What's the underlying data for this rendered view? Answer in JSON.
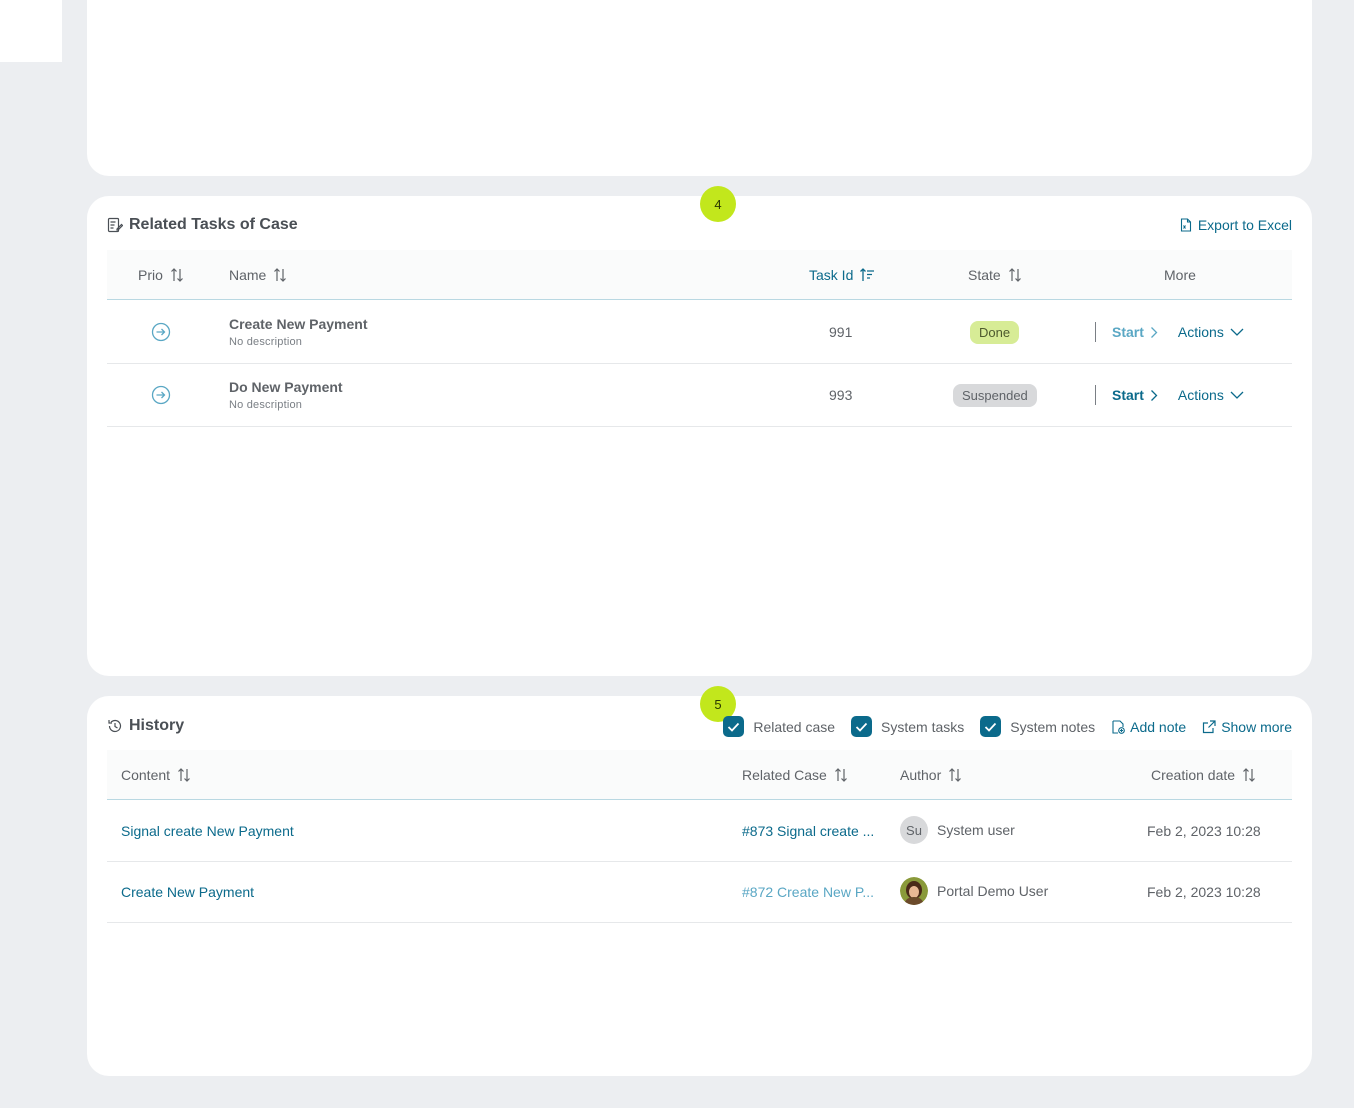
{
  "tasks_card": {
    "step": "4",
    "title": "Related Tasks of Case",
    "export_label": "Export to Excel",
    "columns": {
      "prio": "Prio",
      "name": "Name",
      "task_id": "Task Id",
      "state": "State",
      "more": "More"
    },
    "rows": [
      {
        "name": "Create New Payment",
        "description": "No description",
        "id": "991",
        "state": "Done",
        "start": "Start",
        "actions": "Actions"
      },
      {
        "name": "Do New Payment",
        "description": "No description",
        "id": "993",
        "state": "Suspended",
        "start": "Start",
        "actions": "Actions"
      }
    ]
  },
  "history_card": {
    "step": "5",
    "title": "History",
    "filters": {
      "related_case": "Related case",
      "system_tasks": "System tasks",
      "system_notes": "System notes"
    },
    "add_note": "Add note",
    "show_more": "Show more",
    "columns": {
      "content": "Content",
      "related_case": "Related Case",
      "author": "Author",
      "creation_date": "Creation date"
    },
    "rows": [
      {
        "content": "Signal create New Payment",
        "related_case": "#873 Signal create ...",
        "author_initials": "Su",
        "author": "System user",
        "date": "Feb 2, 2023 10:28"
      },
      {
        "content": "Create New Payment",
        "related_case": "#872 Create New P...",
        "author": "Portal Demo User",
        "date": "Feb 2, 2023 10:28"
      }
    ]
  },
  "colors": {
    "accent": "#0b6a8b",
    "badge": "#c2e71c",
    "done": "#d7ec96",
    "suspended": "#d8d9db"
  }
}
